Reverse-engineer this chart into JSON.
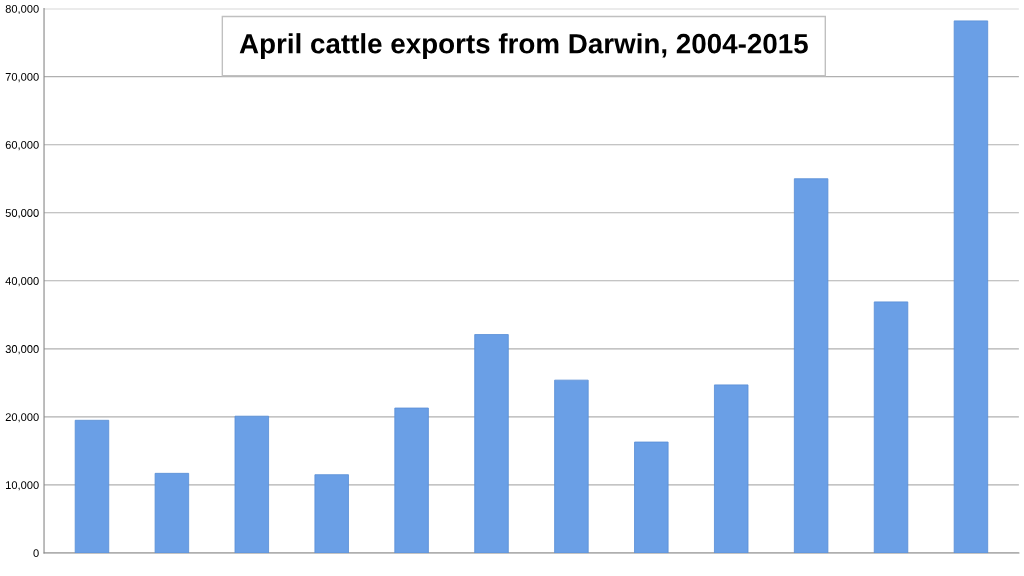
{
  "chart_data": {
    "type": "bar",
    "title": "April cattle exports from Darwin, 2004-2015",
    "categories": [
      null,
      null,
      null,
      null,
      null,
      null,
      null,
      null,
      null,
      null,
      null,
      null
    ],
    "values": [
      19500,
      11700,
      20100,
      11500,
      21300,
      32100,
      25400,
      16300,
      24700,
      55000,
      36900,
      78200
    ],
    "color": "#6a9fe6",
    "ylim": [
      0,
      80000
    ],
    "yticks": [
      0,
      {
        "value": 10000,
        "label": "10,000"
      },
      {
        "value": 20000,
        "label": "20,000"
      },
      {
        "value": 30000,
        "label": "30,000"
      },
      {
        "value": 40000,
        "label": "40,000"
      },
      {
        "value": 50000,
        "label": "50,000"
      },
      {
        "value": 60000,
        "label": "60,000"
      },
      {
        "value": 70000,
        "label": "70,000"
      },
      {
        "value": 80000,
        "label": "80,000"
      }
    ],
    "grid": "y",
    "legend": false
  }
}
